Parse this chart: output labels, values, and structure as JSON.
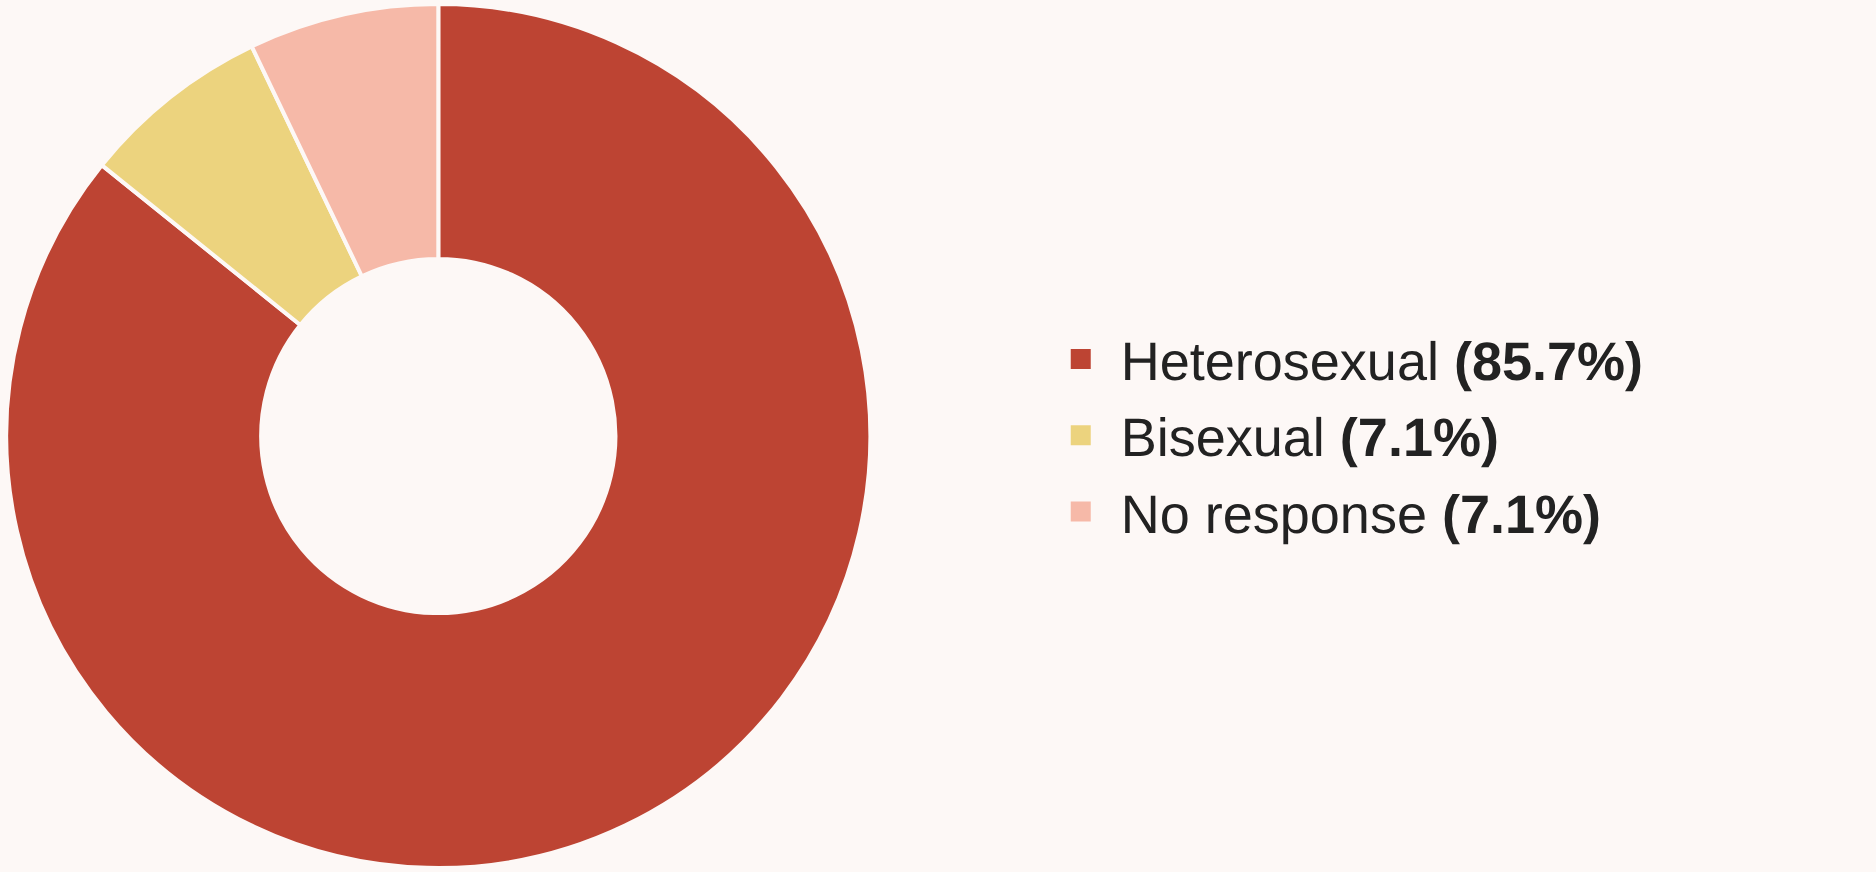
{
  "chart_data": {
    "type": "donut",
    "categories": [
      "Heterosexual",
      "Bisexual",
      "No response"
    ],
    "values": [
      85.7,
      7.1,
      7.1
    ],
    "value_labels": [
      "(85.7%)",
      "(7.1%)",
      "(7.1%)"
    ],
    "colors": [
      "#bd4433",
      "#ecd37e",
      "#f6b9a8"
    ],
    "legend": "right"
  }
}
